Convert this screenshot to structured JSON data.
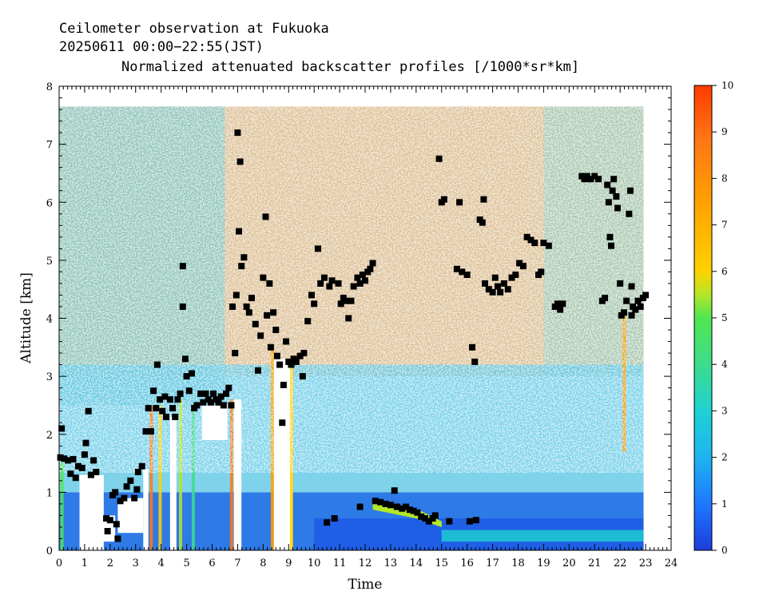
{
  "header": {
    "line1": "Ceilometer observation at Fukuoka",
    "line2": "20250611   00:00−22:55(JST)",
    "line3": "Normalized attenuated backscatter profiles [/1000*sr*km]"
  },
  "chart_data": {
    "type": "heatmap",
    "title": "Ceilometer observation at Fukuoka",
    "subtitle": "20250611 00:00-22:55(JST)",
    "field": "Normalized attenuated backscatter profiles [/1000*sr*km]",
    "xlabel": "Time",
    "ylabel": "Altitude [km]",
    "xlim": [
      0,
      24
    ],
    "ylim": [
      0,
      8
    ],
    "data_xmax": 22.92,
    "data_ymax": 7.65,
    "xticks": [
      0,
      1,
      2,
      3,
      4,
      5,
      6,
      7,
      8,
      9,
      10,
      11,
      12,
      13,
      14,
      15,
      16,
      17,
      18,
      19,
      20,
      21,
      22,
      23,
      24
    ],
    "yticks": [
      0,
      1,
      2,
      3,
      4,
      5,
      6,
      7,
      8
    ],
    "colorbar": {
      "ticks": [
        0,
        1,
        2,
        3,
        4,
        5,
        6,
        7,
        8,
        9,
        10
      ],
      "colors": [
        "#1e3cdc",
        "#1e78ff",
        "#1eb4f0",
        "#1ed2d2",
        "#3cdc8c",
        "#50e650",
        "#b4e628",
        "#ffd200",
        "#ffa000",
        "#ff7814",
        "#ff3c00"
      ],
      "range": [
        0,
        10
      ]
    },
    "cloud_base_points": [
      [
        0.05,
        1.6
      ],
      [
        0.1,
        2.1
      ],
      [
        0.2,
        1.58
      ],
      [
        0.35,
        1.55
      ],
      [
        0.45,
        1.32
      ],
      [
        0.55,
        1.57
      ],
      [
        0.65,
        1.25
      ],
      [
        0.75,
        1.45
      ],
      [
        0.9,
        1.42
      ],
      [
        1.0,
        1.65
      ],
      [
        1.05,
        1.85
      ],
      [
        1.15,
        2.4
      ],
      [
        1.25,
        1.3
      ],
      [
        1.35,
        1.55
      ],
      [
        1.45,
        1.35
      ],
      [
        1.85,
        0.55
      ],
      [
        1.9,
        0.33
      ],
      [
        2.0,
        0.52
      ],
      [
        2.1,
        0.95
      ],
      [
        2.2,
        1.0
      ],
      [
        2.25,
        0.45
      ],
      [
        2.3,
        0.2
      ],
      [
        2.4,
        0.85
      ],
      [
        2.55,
        0.9
      ],
      [
        2.65,
        1.1
      ],
      [
        2.8,
        1.2
      ],
      [
        2.95,
        0.9
      ],
      [
        3.05,
        1.05
      ],
      [
        3.1,
        1.35
      ],
      [
        3.25,
        1.45
      ],
      [
        3.4,
        2.05
      ],
      [
        3.5,
        2.45
      ],
      [
        3.6,
        2.05
      ],
      [
        3.7,
        2.75
      ],
      [
        3.8,
        2.45
      ],
      [
        3.85,
        3.2
      ],
      [
        3.95,
        2.6
      ],
      [
        4.05,
        2.4
      ],
      [
        4.15,
        2.65
      ],
      [
        4.2,
        2.3
      ],
      [
        4.35,
        2.6
      ],
      [
        4.45,
        2.45
      ],
      [
        4.55,
        2.3
      ],
      [
        4.65,
        2.6
      ],
      [
        4.75,
        2.7
      ],
      [
        4.85,
        4.9
      ],
      [
        4.85,
        4.2
      ],
      [
        4.95,
        3.3
      ],
      [
        5.0,
        3.0
      ],
      [
        5.1,
        2.75
      ],
      [
        5.2,
        3.05
      ],
      [
        5.3,
        2.45
      ],
      [
        5.4,
        2.5
      ],
      [
        5.55,
        2.7
      ],
      [
        5.65,
        2.55
      ],
      [
        5.75,
        2.7
      ],
      [
        5.85,
        2.6
      ],
      [
        5.95,
        2.55
      ],
      [
        6.05,
        2.7
      ],
      [
        6.15,
        2.6
      ],
      [
        6.25,
        2.55
      ],
      [
        6.35,
        2.65
      ],
      [
        6.45,
        2.5
      ],
      [
        6.55,
        2.7
      ],
      [
        6.65,
        2.8
      ],
      [
        6.75,
        2.5
      ],
      [
        6.8,
        4.2
      ],
      [
        6.9,
        3.4
      ],
      [
        6.95,
        4.4
      ],
      [
        7.0,
        7.2
      ],
      [
        7.05,
        5.5
      ],
      [
        7.1,
        6.7
      ],
      [
        7.15,
        4.9
      ],
      [
        7.25,
        5.05
      ],
      [
        7.35,
        4.2
      ],
      [
        7.45,
        4.1
      ],
      [
        7.55,
        4.35
      ],
      [
        7.7,
        3.9
      ],
      [
        7.8,
        3.1
      ],
      [
        7.9,
        3.7
      ],
      [
        8.0,
        4.7
      ],
      [
        8.1,
        5.75
      ],
      [
        8.15,
        4.05
      ],
      [
        8.25,
        4.6
      ],
      [
        8.3,
        3.5
      ],
      [
        8.4,
        4.1
      ],
      [
        8.5,
        3.8
      ],
      [
        8.55,
        3.35
      ],
      [
        8.65,
        3.2
      ],
      [
        8.75,
        2.2
      ],
      [
        8.8,
        2.85
      ],
      [
        8.9,
        3.6
      ],
      [
        9.0,
        3.25
      ],
      [
        9.1,
        3.2
      ],
      [
        9.2,
        3.3
      ],
      [
        9.3,
        3.25
      ],
      [
        9.45,
        3.35
      ],
      [
        9.55,
        3.0
      ],
      [
        9.6,
        3.4
      ],
      [
        9.75,
        3.95
      ],
      [
        9.9,
        4.4
      ],
      [
        10.0,
        4.25
      ],
      [
        10.15,
        5.2
      ],
      [
        10.25,
        4.6
      ],
      [
        10.4,
        4.7
      ],
      [
        10.5,
        0.48
      ],
      [
        10.6,
        4.55
      ],
      [
        10.7,
        4.65
      ],
      [
        10.8,
        0.55
      ],
      [
        10.95,
        4.6
      ],
      [
        11.05,
        4.25
      ],
      [
        11.15,
        4.35
      ],
      [
        11.25,
        4.3
      ],
      [
        11.35,
        4.0
      ],
      [
        11.45,
        4.3
      ],
      [
        11.55,
        4.55
      ],
      [
        11.7,
        4.7
      ],
      [
        11.8,
        4.6
      ],
      [
        11.9,
        4.75
      ],
      [
        12.0,
        4.65
      ],
      [
        12.1,
        4.8
      ],
      [
        12.2,
        4.85
      ],
      [
        12.3,
        4.95
      ],
      [
        11.8,
        0.75
      ],
      [
        12.4,
        0.85
      ],
      [
        12.6,
        0.83
      ],
      [
        12.8,
        0.8
      ],
      [
        13.0,
        0.78
      ],
      [
        13.15,
        1.03
      ],
      [
        13.25,
        0.75
      ],
      [
        13.45,
        0.72
      ],
      [
        13.6,
        0.75
      ],
      [
        13.75,
        0.7
      ],
      [
        13.9,
        0.68
      ],
      [
        14.05,
        0.65
      ],
      [
        14.2,
        0.58
      ],
      [
        14.35,
        0.55
      ],
      [
        14.5,
        0.5
      ],
      [
        14.65,
        0.55
      ],
      [
        14.75,
        0.6
      ],
      [
        14.9,
        6.75
      ],
      [
        15.0,
        6.0
      ],
      [
        15.1,
        6.05
      ],
      [
        15.3,
        0.5
      ],
      [
        15.6,
        4.85
      ],
      [
        15.7,
        6.0
      ],
      [
        15.8,
        4.8
      ],
      [
        16.0,
        4.75
      ],
      [
        16.1,
        0.5
      ],
      [
        16.2,
        3.5
      ],
      [
        16.3,
        3.25
      ],
      [
        16.35,
        0.52
      ],
      [
        16.5,
        5.7
      ],
      [
        16.6,
        5.65
      ],
      [
        16.65,
        6.05
      ],
      [
        16.7,
        4.6
      ],
      [
        16.85,
        4.5
      ],
      [
        17.0,
        4.45
      ],
      [
        17.1,
        4.7
      ],
      [
        17.2,
        4.55
      ],
      [
        17.3,
        4.45
      ],
      [
        17.45,
        4.6
      ],
      [
        17.6,
        4.5
      ],
      [
        17.75,
        4.7
      ],
      [
        17.9,
        4.75
      ],
      [
        18.05,
        4.95
      ],
      [
        18.2,
        4.9
      ],
      [
        18.35,
        5.4
      ],
      [
        18.5,
        5.35
      ],
      [
        18.65,
        5.3
      ],
      [
        18.8,
        4.75
      ],
      [
        18.9,
        4.8
      ],
      [
        19.0,
        5.3
      ],
      [
        19.2,
        5.25
      ],
      [
        19.45,
        4.2
      ],
      [
        19.55,
        4.25
      ],
      [
        19.65,
        4.15
      ],
      [
        19.75,
        4.25
      ],
      [
        20.5,
        6.45
      ],
      [
        20.6,
        6.4
      ],
      [
        20.7,
        6.45
      ],
      [
        20.85,
        6.4
      ],
      [
        21.0,
        6.45
      ],
      [
        21.15,
        6.4
      ],
      [
        21.3,
        4.3
      ],
      [
        21.4,
        4.35
      ],
      [
        21.5,
        6.3
      ],
      [
        21.55,
        6.0
      ],
      [
        21.6,
        5.4
      ],
      [
        21.65,
        5.25
      ],
      [
        21.7,
        6.2
      ],
      [
        21.75,
        6.4
      ],
      [
        21.85,
        6.1
      ],
      [
        21.9,
        5.9
      ],
      [
        22.0,
        4.6
      ],
      [
        22.05,
        4.05
      ],
      [
        22.15,
        4.1
      ],
      [
        22.25,
        4.3
      ],
      [
        22.35,
        5.8
      ],
      [
        22.4,
        6.2
      ],
      [
        22.45,
        4.55
      ],
      [
        22.5,
        4.2
      ],
      [
        22.6,
        4.15
      ],
      [
        22.7,
        4.3
      ],
      [
        22.8,
        4.2
      ],
      [
        22.9,
        4.35
      ],
      [
        23.0,
        4.4
      ],
      [
        22.45,
        4.05
      ]
    ]
  }
}
